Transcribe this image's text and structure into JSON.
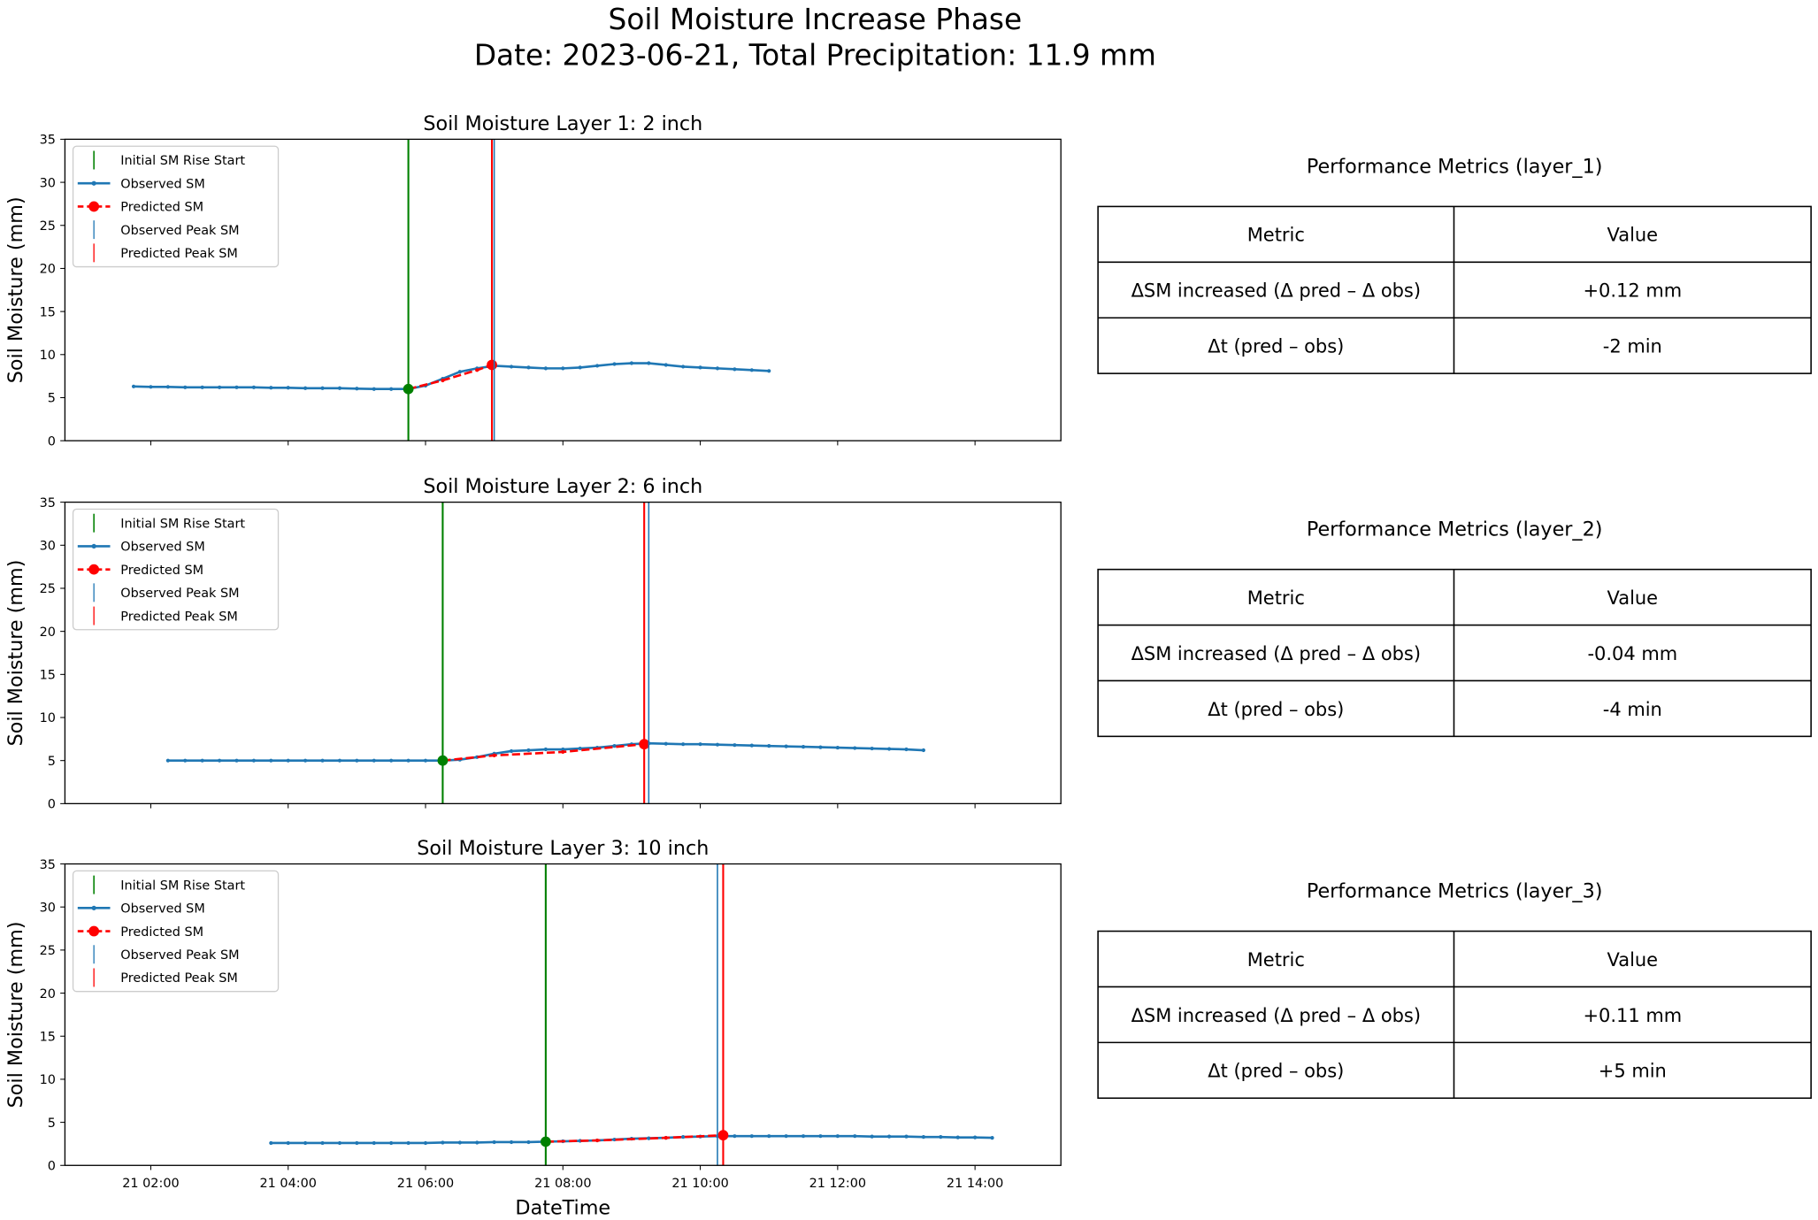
{
  "suptitle": "Soil Moisture Increase Phase",
  "subtitle": "Date: 2023-06-21, Total Precipitation: 11.9 mm",
  "colors": {
    "observed": "#1f77b4",
    "predicted": "#ff0000",
    "rise_start": "#008000"
  },
  "chart_data": [
    {
      "type": "line",
      "title": "Soil Moisture Layer 1: 2 inch",
      "ylabel": "Soil Moisture (mm)",
      "xlabel": "",
      "ylim": [
        0,
        35
      ],
      "yticks": [
        "0",
        "5",
        "10",
        "15",
        "20",
        "25",
        "30",
        "35"
      ],
      "xlim": [
        "00:45",
        "15:15"
      ],
      "xticks": [
        "21 02:00",
        "21 04:00",
        "21 06:00",
        "21 08:00",
        "21 10:00",
        "21 12:00",
        "21 14:00"
      ],
      "legend": {
        "placement": "upper-left",
        "entries": [
          "Initial SM Rise Start",
          "Observed SM",
          "Predicted SM",
          "Observed Peak SM",
          "Predicted Peak SM"
        ]
      },
      "observed": {
        "start": "01:45",
        "interval_min": 15,
        "values": [
          6.3,
          6.25,
          6.25,
          6.2,
          6.2,
          6.2,
          6.2,
          6.2,
          6.15,
          6.15,
          6.1,
          6.1,
          6.1,
          6.05,
          6.0,
          6.0,
          6.0,
          6.4,
          7.2,
          8.0,
          8.4,
          8.7,
          8.6,
          8.5,
          8.4,
          8.4,
          8.5,
          8.7,
          8.9,
          9.0,
          9.0,
          8.8,
          8.6,
          8.5,
          8.4,
          8.3,
          8.2,
          8.1
        ]
      },
      "predicted": [
        [
          "05:45",
          6.0
        ],
        [
          "06:15",
          7.0
        ],
        [
          "06:45",
          8.2
        ],
        [
          "06:58",
          8.8
        ]
      ],
      "rise_start": [
        "05:45",
        6.0
      ],
      "observed_peak": "07:00",
      "predicted_peak": "06:58"
    },
    {
      "type": "line",
      "title": "Soil Moisture Layer 2: 6 inch",
      "ylabel": "Soil Moisture (mm)",
      "xlabel": "",
      "ylim": [
        0,
        35
      ],
      "yticks": [
        "0",
        "5",
        "10",
        "15",
        "20",
        "25",
        "30",
        "35"
      ],
      "xlim": [
        "00:45",
        "15:15"
      ],
      "xticks": [
        "21 02:00",
        "21 04:00",
        "21 06:00",
        "21 08:00",
        "21 10:00",
        "21 12:00",
        "21 14:00"
      ],
      "legend": {
        "placement": "upper-left",
        "entries": [
          "Initial SM Rise Start",
          "Observed SM",
          "Predicted SM",
          "Observed Peak SM",
          "Predicted Peak SM"
        ]
      },
      "observed": {
        "start": "02:15",
        "interval_min": 15,
        "values": [
          5.0,
          5.0,
          5.0,
          5.0,
          5.0,
          5.0,
          5.0,
          5.0,
          5.0,
          5.0,
          5.0,
          5.0,
          5.0,
          5.0,
          5.0,
          5.0,
          5.0,
          5.1,
          5.4,
          5.8,
          6.1,
          6.2,
          6.3,
          6.3,
          6.4,
          6.5,
          6.7,
          6.9,
          7.0,
          6.95,
          6.9,
          6.9,
          6.85,
          6.8,
          6.75,
          6.7,
          6.65,
          6.6,
          6.55,
          6.5,
          6.45,
          6.4,
          6.35,
          6.3,
          6.2
        ]
      },
      "predicted": [
        [
          "06:15",
          5.0
        ],
        [
          "07:00",
          5.6
        ],
        [
          "08:00",
          6.0
        ],
        [
          "09:11",
          6.9
        ]
      ],
      "rise_start": [
        "06:15",
        5.0
      ],
      "observed_peak": "09:15",
      "predicted_peak": "09:11"
    },
    {
      "type": "line",
      "title": "Soil Moisture Layer 3: 10 inch",
      "ylabel": "Soil Moisture (mm)",
      "xlabel": "DateTime",
      "ylim": [
        0,
        35
      ],
      "yticks": [
        "0",
        "5",
        "10",
        "15",
        "20",
        "25",
        "30",
        "35"
      ],
      "xlim": [
        "00:45",
        "15:15"
      ],
      "xticks": [
        "21 02:00",
        "21 04:00",
        "21 06:00",
        "21 08:00",
        "21 10:00",
        "21 12:00",
        "21 14:00"
      ],
      "legend": {
        "placement": "upper-left",
        "entries": [
          "Initial SM Rise Start",
          "Observed SM",
          "Predicted SM",
          "Observed Peak SM",
          "Predicted Peak SM"
        ]
      },
      "observed": {
        "start": "03:45",
        "interval_min": 15,
        "values": [
          2.6,
          2.6,
          2.6,
          2.6,
          2.6,
          2.6,
          2.6,
          2.6,
          2.6,
          2.6,
          2.65,
          2.65,
          2.65,
          2.7,
          2.7,
          2.7,
          2.75,
          2.8,
          2.85,
          2.9,
          3.0,
          3.1,
          3.15,
          3.2,
          3.3,
          3.35,
          3.4,
          3.4,
          3.4,
          3.4,
          3.4,
          3.4,
          3.4,
          3.4,
          3.4,
          3.35,
          3.35,
          3.35,
          3.3,
          3.3,
          3.25,
          3.25,
          3.2
        ]
      },
      "predicted": [
        [
          "07:45",
          2.75
        ],
        [
          "08:30",
          2.9
        ],
        [
          "09:30",
          3.2
        ],
        [
          "10:20",
          3.5
        ]
      ],
      "rise_start": [
        "07:45",
        2.75
      ],
      "observed_peak": "10:15",
      "predicted_peak": "10:20"
    }
  ],
  "tables": [
    {
      "title": "Performance Metrics (layer_1)",
      "header": [
        "Metric",
        "Value"
      ],
      "rows": [
        [
          "ΔSM increased (Δ pred – Δ obs)",
          "+0.12 mm"
        ],
        [
          "Δt  (pred – obs)",
          "-2 min"
        ]
      ]
    },
    {
      "title": "Performance Metrics (layer_2)",
      "header": [
        "Metric",
        "Value"
      ],
      "rows": [
        [
          "ΔSM increased (Δ pred – Δ obs)",
          "-0.04 mm"
        ],
        [
          "Δt  (pred – obs)",
          "-4 min"
        ]
      ]
    },
    {
      "title": "Performance Metrics (layer_3)",
      "header": [
        "Metric",
        "Value"
      ],
      "rows": [
        [
          "ΔSM increased (Δ pred – Δ obs)",
          "+0.11 mm"
        ],
        [
          "Δt  (pred – obs)",
          "+5 min"
        ]
      ]
    }
  ]
}
